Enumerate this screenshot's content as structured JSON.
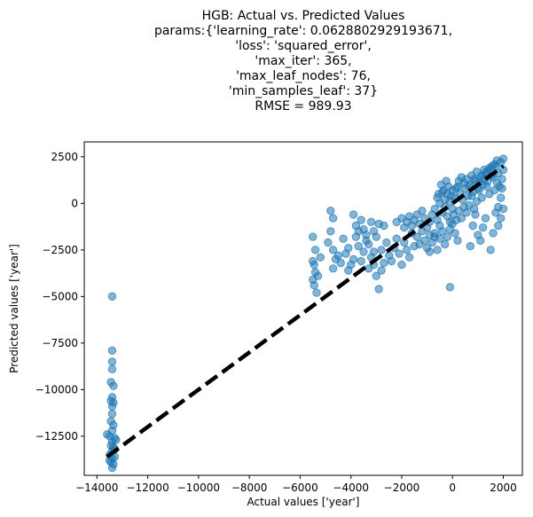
{
  "chart_data": {
    "type": "scatter",
    "title_lines": [
      "HGB: Actual vs. Predicted Values",
      "params:{'learning_rate': 0.0628802929193671,",
      "'loss': 'squared_error',",
      "'max_iter': 365,",
      "'max_leaf_nodes': 76,",
      "'min_samples_leaf': 37}",
      "RMSE = 989.93"
    ],
    "xlabel": "Actual values ['year']",
    "ylabel": "Predicted values ['year']",
    "xlim": [
      -14500,
      2750
    ],
    "ylim": [
      -14600,
      3300
    ],
    "xticks": [
      {
        "value": -14000,
        "label": "−14000"
      },
      {
        "value": -12000,
        "label": "−12000"
      },
      {
        "value": -10000,
        "label": "−10000"
      },
      {
        "value": -8000,
        "label": "−8000"
      },
      {
        "value": -6000,
        "label": "−6000"
      },
      {
        "value": -4000,
        "label": "−4000"
      },
      {
        "value": -2000,
        "label": "−2000"
      },
      {
        "value": 0,
        "label": "0"
      },
      {
        "value": 2000,
        "label": "2000"
      }
    ],
    "yticks": [
      {
        "value": 2500,
        "label": "2500"
      },
      {
        "value": 0,
        "label": "0"
      },
      {
        "value": -2500,
        "label": "−2500"
      },
      {
        "value": -5000,
        "label": "−5000"
      },
      {
        "value": -7500,
        "label": "−7500"
      },
      {
        "value": -10000,
        "label": "−10000"
      },
      {
        "value": -12500,
        "label": "−12500"
      }
    ],
    "point_color": "#1f77b4",
    "line_color": "#000000",
    "reference_line": {
      "x": [
        -13600,
        2000
      ],
      "y": [
        -13600,
        2000
      ]
    },
    "points": [
      [
        -13400,
        -5000
      ],
      [
        -13400,
        -7900
      ],
      [
        -13400,
        -8500
      ],
      [
        -13400,
        -8900
      ],
      [
        -13450,
        -9600
      ],
      [
        -13350,
        -9800
      ],
      [
        -13400,
        -10400
      ],
      [
        -13450,
        -10600
      ],
      [
        -13350,
        -10700
      ],
      [
        -13400,
        -10900
      ],
      [
        -13400,
        -11300
      ],
      [
        -13450,
        -11700
      ],
      [
        -13350,
        -11900
      ],
      [
        -13400,
        -12200
      ],
      [
        -13500,
        -12500
      ],
      [
        -13300,
        -12600
      ],
      [
        -13400,
        -12800
      ],
      [
        -13450,
        -13000
      ],
      [
        -13350,
        -13100
      ],
      [
        -13400,
        -13300
      ],
      [
        -13500,
        -13500
      ],
      [
        -13300,
        -13600
      ],
      [
        -13400,
        -13700
      ],
      [
        -13450,
        -13900
      ],
      [
        -13350,
        -14000
      ],
      [
        -13400,
        -14200
      ],
      [
        -13600,
        -12400
      ],
      [
        -13250,
        -12700
      ],
      [
        -13300,
        -13200
      ],
      [
        -13500,
        -13800
      ],
      [
        -5500,
        -1800
      ],
      [
        -5400,
        -2500
      ],
      [
        -5500,
        -3100
      ],
      [
        -5450,
        -3300
      ],
      [
        -5400,
        -3700
      ],
      [
        -5500,
        -4100
      ],
      [
        -5450,
        -4400
      ],
      [
        -5350,
        -4800
      ],
      [
        -5300,
        -3900
      ],
      [
        -5200,
        -2900
      ],
      [
        -4800,
        -400
      ],
      [
        -4700,
        -800
      ],
      [
        -4800,
        -1500
      ],
      [
        -4900,
        -2100
      ],
      [
        -4700,
        -2500
      ],
      [
        -4600,
        -3000
      ],
      [
        -4700,
        -3500
      ],
      [
        -4500,
        -2800
      ],
      [
        -4400,
        -3200
      ],
      [
        -4300,
        -1900
      ],
      [
        -4200,
        -2700
      ],
      [
        -4100,
        -3600
      ],
      [
        -4000,
        -3300
      ],
      [
        -4100,
        -2400
      ],
      [
        -3900,
        -3000
      ],
      [
        -3800,
        -1800
      ],
      [
        -3700,
        -2300
      ],
      [
        -3600,
        -3100
      ],
      [
        -3500,
        -2600
      ],
      [
        -3400,
        -2000
      ],
      [
        -3300,
        -3500
      ],
      [
        -3900,
        -600
      ],
      [
        -3800,
        -1200
      ],
      [
        -3700,
        -1500
      ],
      [
        -3600,
        -900
      ],
      [
        -3500,
        -1400
      ],
      [
        -3400,
        -1700
      ],
      [
        -3300,
        -2200
      ],
      [
        -3200,
        -1000
      ],
      [
        -3100,
        -1500
      ],
      [
        -3000,
        -1800
      ],
      [
        -2900,
        -1100
      ],
      [
        -2800,
        -2500
      ],
      [
        -2700,
        -1200
      ],
      [
        -2600,
        -2100
      ],
      [
        -3200,
        -2900
      ],
      [
        -3100,
        -3300
      ],
      [
        -3000,
        -3900
      ],
      [
        -2900,
        -4600
      ],
      [
        -3100,
        -2600
      ],
      [
        -2800,
        -3600
      ],
      [
        -2700,
        -3200
      ],
      [
        -2500,
        -2800
      ],
      [
        -2400,
        -3100
      ],
      [
        -2300,
        -2400
      ],
      [
        -2200,
        -1900
      ],
      [
        -2100,
        -2700
      ],
      [
        -2000,
        -3300
      ],
      [
        -1900,
        -2100
      ],
      [
        -1800,
        -2500
      ],
      [
        -1700,
        -2900
      ],
      [
        -1600,
        -1600
      ],
      [
        -1500,
        -2300
      ],
      [
        -1400,
        -1800
      ],
      [
        -1300,
        -2200
      ],
      [
        -1200,
        -1500
      ],
      [
        -2200,
        -1000
      ],
      [
        -2000,
        -800
      ],
      [
        -1900,
        -1300
      ],
      [
        -1800,
        -1000
      ],
      [
        -1700,
        -700
      ],
      [
        -1600,
        -1200
      ],
      [
        -1500,
        -900
      ],
      [
        -1400,
        -600
      ],
      [
        -1300,
        -1100
      ],
      [
        -1200,
        -400
      ],
      [
        -1100,
        -800
      ],
      [
        -1000,
        -1300
      ],
      [
        -900,
        -1000
      ],
      [
        -800,
        -600
      ],
      [
        -700,
        -300
      ],
      [
        -600,
        -900
      ],
      [
        -500,
        -1200
      ],
      [
        -400,
        -500
      ],
      [
        -300,
        -200
      ],
      [
        -200,
        -700
      ],
      [
        -100,
        -1000
      ],
      [
        0,
        -300
      ],
      [
        -1100,
        -2000
      ],
      [
        -1000,
        -2400
      ],
      [
        -900,
        -1700
      ],
      [
        -800,
        -2100
      ],
      [
        -700,
        -1600
      ],
      [
        -600,
        -2500
      ],
      [
        -500,
        -1900
      ],
      [
        -400,
        -1500
      ],
      [
        -300,
        -2200
      ],
      [
        -200,
        -1800
      ],
      [
        -100,
        -1400
      ],
      [
        0,
        -1100
      ],
      [
        100,
        -1600
      ],
      [
        200,
        -2000
      ],
      [
        -600,
        300
      ],
      [
        -500,
        0
      ],
      [
        -400,
        600
      ],
      [
        -300,
        200
      ],
      [
        -200,
        500
      ],
      [
        -100,
        100
      ],
      [
        0,
        700
      ],
      [
        100,
        300
      ],
      [
        200,
        900
      ],
      [
        300,
        500
      ],
      [
        400,
        200
      ],
      [
        500,
        800
      ],
      [
        600,
        400
      ],
      [
        700,
        1000
      ],
      [
        800,
        600
      ],
      [
        900,
        1200
      ],
      [
        1000,
        800
      ],
      [
        1100,
        1400
      ],
      [
        1200,
        1000
      ],
      [
        1300,
        1600
      ],
      [
        1400,
        1200
      ],
      [
        1500,
        1800
      ],
      [
        1600,
        1400
      ],
      [
        1700,
        2000
      ],
      [
        1800,
        1600
      ],
      [
        1900,
        2200
      ],
      [
        2000,
        1800
      ],
      [
        2000,
        2400
      ],
      [
        1950,
        1300
      ],
      [
        1850,
        900
      ],
      [
        1750,
        1100
      ],
      [
        1650,
        700
      ],
      [
        1550,
        1500
      ],
      [
        1450,
        500
      ],
      [
        1350,
        900
      ],
      [
        1250,
        1300
      ],
      [
        1150,
        300
      ],
      [
        1050,
        700
      ],
      [
        950,
        100
      ],
      [
        850,
        -300
      ],
      [
        750,
        400
      ],
      [
        650,
        -100
      ],
      [
        550,
        -500
      ],
      [
        450,
        -200
      ],
      [
        350,
        -800
      ],
      [
        250,
        -400
      ],
      [
        150,
        -900
      ],
      [
        50,
        -600
      ],
      [
        1000,
        -1700
      ],
      [
        1200,
        -1300
      ],
      [
        800,
        -1200
      ],
      [
        900,
        -600
      ],
      [
        1300,
        -800
      ],
      [
        1500,
        -2500
      ],
      [
        1600,
        -1600
      ],
      [
        1700,
        -500
      ],
      [
        1800,
        -200
      ],
      [
        1900,
        300
      ],
      [
        2000,
        -300
      ],
      [
        1950,
        800
      ],
      [
        1450,
        1900
      ],
      [
        1350,
        1700
      ],
      [
        1650,
        2100
      ],
      [
        1750,
        2300
      ],
      [
        1550,
        2000
      ],
      [
        1250,
        1800
      ],
      [
        1150,
        1500
      ],
      [
        1050,
        1100
      ],
      [
        950,
        1700
      ],
      [
        850,
        1300
      ],
      [
        750,
        1500
      ],
      [
        650,
        900
      ],
      [
        550,
        1300
      ],
      [
        450,
        1100
      ],
      [
        350,
        1400
      ],
      [
        250,
        1200
      ],
      [
        150,
        800
      ],
      [
        -50,
        400
      ],
      [
        -150,
        900
      ],
      [
        -250,
        1200
      ],
      [
        -350,
        700
      ],
      [
        -450,
        1000
      ],
      [
        -550,
        500
      ],
      [
        -700,
        -1800
      ],
      [
        -900,
        -2600
      ],
      [
        -100,
        -4500
      ],
      [
        1100,
        -2000
      ],
      [
        700,
        -2300
      ],
      [
        1900,
        -800
      ],
      [
        1800,
        -1200
      ]
    ]
  }
}
